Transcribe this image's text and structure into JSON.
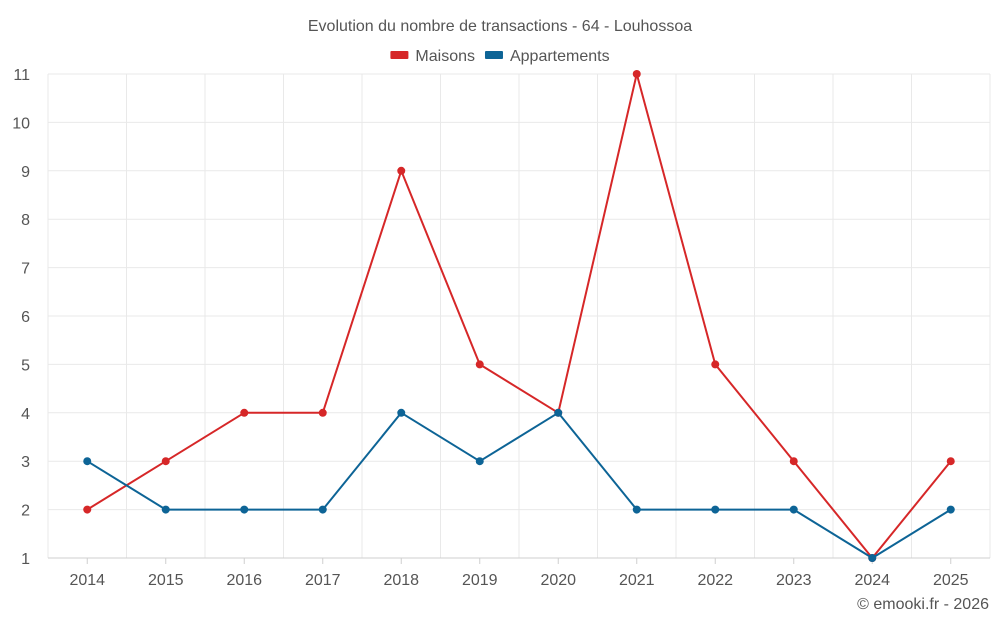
{
  "chart_data": {
    "type": "line",
    "title": "Evolution du nombre de transactions - 64 - Louhossoa",
    "categories": [
      "2014",
      "2015",
      "2016",
      "2017",
      "2018",
      "2019",
      "2020",
      "2021",
      "2022",
      "2023",
      "2024",
      "2025"
    ],
    "ylim": [
      1,
      11
    ],
    "yticks": [
      1,
      2,
      3,
      4,
      5,
      6,
      7,
      8,
      9,
      10,
      11
    ],
    "grid": true,
    "legend_position": "top-center",
    "series": [
      {
        "name": "Maisons",
        "color": "#d62728",
        "values": [
          2,
          3,
          4,
          4,
          9,
          5,
          4,
          11,
          5,
          3,
          1,
          3
        ]
      },
      {
        "name": "Appartements",
        "color": "#0d6496",
        "values": [
          3,
          2,
          2,
          2,
          4,
          3,
          4,
          2,
          2,
          2,
          1,
          2
        ]
      }
    ]
  },
  "credit": "© emooki.fr - 2026"
}
